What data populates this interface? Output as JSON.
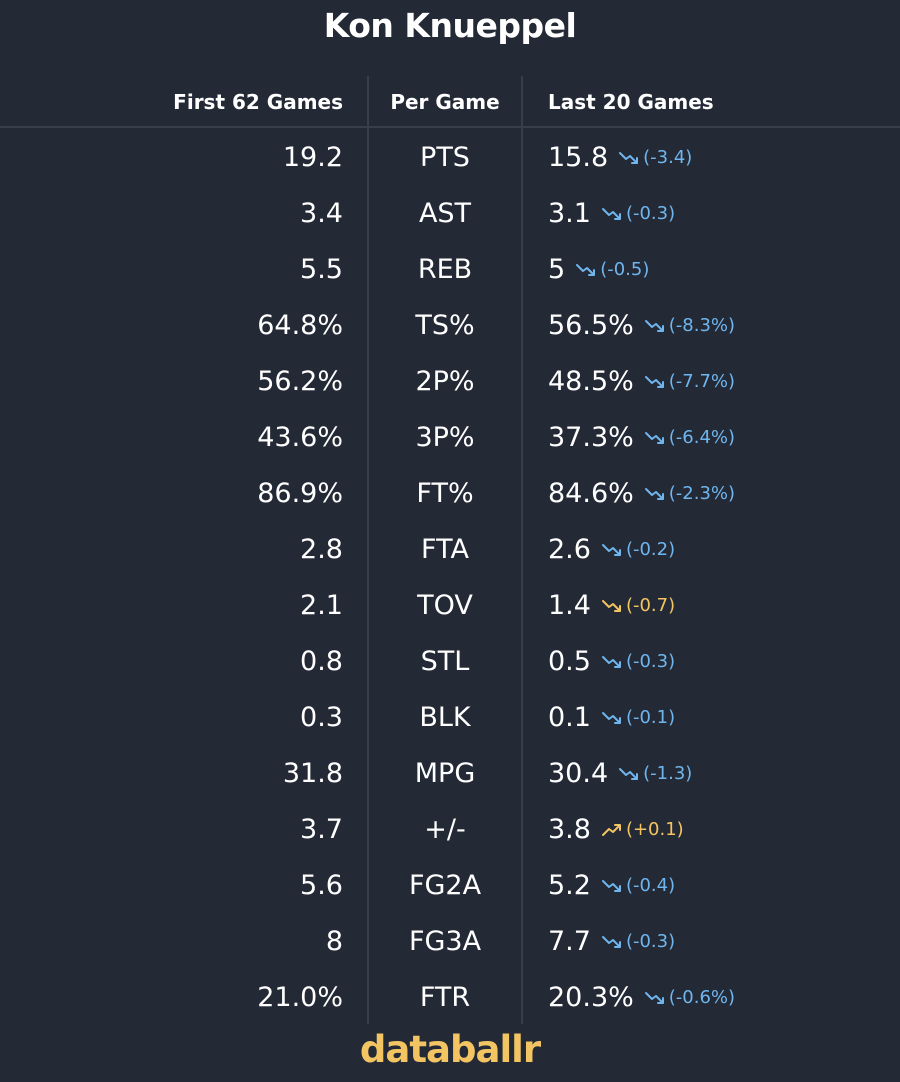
{
  "title": "Kon Knueppel",
  "headers": {
    "first": "First 62 Games",
    "per_game": "Per Game",
    "last": "Last 20 Games"
  },
  "rows": [
    {
      "first": "19.2",
      "stat": "PTS",
      "last": "15.8",
      "delta": "(-3.4)",
      "direction": "down",
      "color": "#6fb6ee"
    },
    {
      "first": "3.4",
      "stat": "AST",
      "last": "3.1",
      "delta": "(-0.3)",
      "direction": "down",
      "color": "#6fb6ee"
    },
    {
      "first": "5.5",
      "stat": "REB",
      "last": "5",
      "delta": "(-0.5)",
      "direction": "down",
      "color": "#6fb6ee"
    },
    {
      "first": "64.8%",
      "stat": "TS%",
      "last": "56.5%",
      "delta": "(-8.3%)",
      "direction": "down",
      "color": "#6fb6ee"
    },
    {
      "first": "56.2%",
      "stat": "2P%",
      "last": "48.5%",
      "delta": "(-7.7%)",
      "direction": "down",
      "color": "#6fb6ee"
    },
    {
      "first": "43.6%",
      "stat": "3P%",
      "last": "37.3%",
      "delta": "(-6.4%)",
      "direction": "down",
      "color": "#6fb6ee"
    },
    {
      "first": "86.9%",
      "stat": "FT%",
      "last": "84.6%",
      "delta": "(-2.3%)",
      "direction": "down",
      "color": "#6fb6ee"
    },
    {
      "first": "2.8",
      "stat": "FTA",
      "last": "2.6",
      "delta": "(-0.2)",
      "direction": "down",
      "color": "#6fb6ee"
    },
    {
      "first": "2.1",
      "stat": "TOV",
      "last": "1.4",
      "delta": "(-0.7)",
      "direction": "down",
      "color": "#f3c562"
    },
    {
      "first": "0.8",
      "stat": "STL",
      "last": "0.5",
      "delta": "(-0.3)",
      "direction": "down",
      "color": "#6fb6ee"
    },
    {
      "first": "0.3",
      "stat": "BLK",
      "last": "0.1",
      "delta": "(-0.1)",
      "direction": "down",
      "color": "#6fb6ee"
    },
    {
      "first": "31.8",
      "stat": "MPG",
      "last": "30.4",
      "delta": "(-1.3)",
      "direction": "down",
      "color": "#6fb6ee"
    },
    {
      "first": "3.7",
      "stat": "+/-",
      "last": "3.8",
      "delta": "(+0.1)",
      "direction": "up",
      "color": "#f3c562"
    },
    {
      "first": "5.6",
      "stat": "FG2A",
      "last": "5.2",
      "delta": "(-0.4)",
      "direction": "down",
      "color": "#6fb6ee"
    },
    {
      "first": "8",
      "stat": "FG3A",
      "last": "7.7",
      "delta": "(-0.3)",
      "direction": "down",
      "color": "#6fb6ee"
    },
    {
      "first": "21.0%",
      "stat": "FTR",
      "last": "20.3%",
      "delta": "(-0.6%)",
      "direction": "down",
      "color": "#6fb6ee"
    }
  ],
  "brand": "databallr",
  "colors": {
    "background": "#242936",
    "brand": "#f3c562",
    "trend_blue": "#6fb6ee",
    "trend_gold": "#f3c562"
  }
}
